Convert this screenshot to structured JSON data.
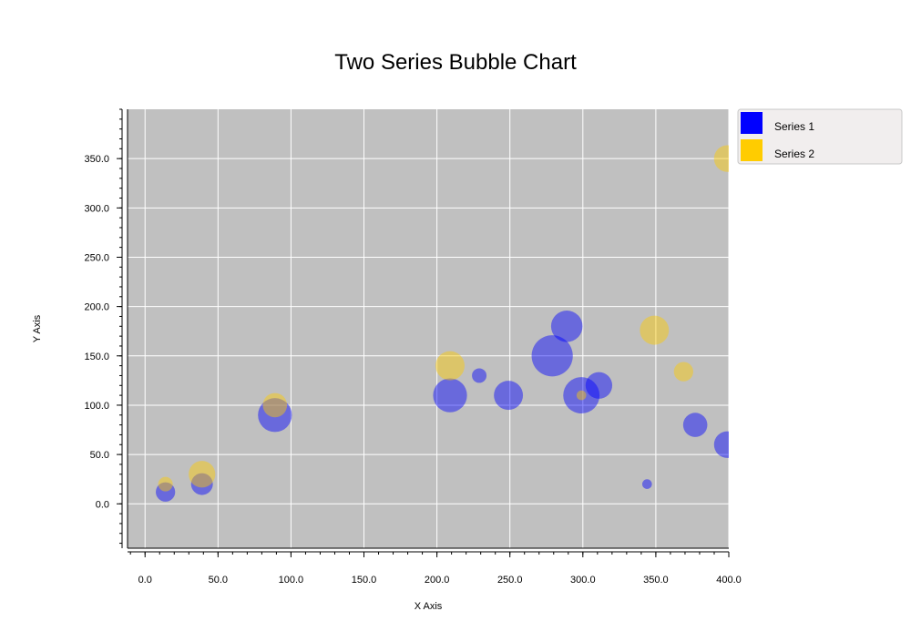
{
  "chart_data": {
    "type": "scatter",
    "title": "Two Series Bubble Chart",
    "xlabel": "X Axis",
    "ylabel": "Y Axis",
    "xlim": [
      -12,
      400
    ],
    "ylim": [
      -45,
      400
    ],
    "x_ticks": [
      "0.0",
      "50.0",
      "100.0",
      "150.0",
      "200.0",
      "250.0",
      "300.0",
      "350.0",
      "400.0"
    ],
    "y_ticks": [
      "0.0",
      "50.0",
      "100.0",
      "150.0",
      "200.0",
      "250.0",
      "300.0",
      "350.0"
    ],
    "grid": true,
    "legend_position": "right",
    "series": [
      {
        "name": "Series 1",
        "color": "#0000ff",
        "points": [
          {
            "x": 14,
            "y": 12,
            "r": 8
          },
          {
            "x": 39,
            "y": 20,
            "r": 9
          },
          {
            "x": 89,
            "y": 90,
            "r": 14
          },
          {
            "x": 209,
            "y": 110,
            "r": 14
          },
          {
            "x": 229,
            "y": 130,
            "r": 6
          },
          {
            "x": 249,
            "y": 110,
            "r": 12
          },
          {
            "x": 279,
            "y": 150,
            "r": 17
          },
          {
            "x": 289,
            "y": 180,
            "r": 13
          },
          {
            "x": 299,
            "y": 110,
            "r": 15
          },
          {
            "x": 311,
            "y": 120,
            "r": 11
          },
          {
            "x": 344,
            "y": 20,
            "r": 4
          },
          {
            "x": 377,
            "y": 80,
            "r": 10
          },
          {
            "x": 399,
            "y": 60,
            "r": 11
          }
        ]
      },
      {
        "name": "Series 2",
        "color": "#ffcc00",
        "points": [
          {
            "x": 14,
            "y": 20,
            "r": 6
          },
          {
            "x": 39,
            "y": 30,
            "r": 11
          },
          {
            "x": 89,
            "y": 100,
            "r": 10
          },
          {
            "x": 209,
            "y": 140,
            "r": 12
          },
          {
            "x": 299,
            "y": 110,
            "r": 4
          },
          {
            "x": 349,
            "y": 176,
            "r": 12
          },
          {
            "x": 369,
            "y": 134,
            "r": 8
          },
          {
            "x": 399,
            "y": 350,
            "r": 11
          }
        ]
      }
    ]
  }
}
